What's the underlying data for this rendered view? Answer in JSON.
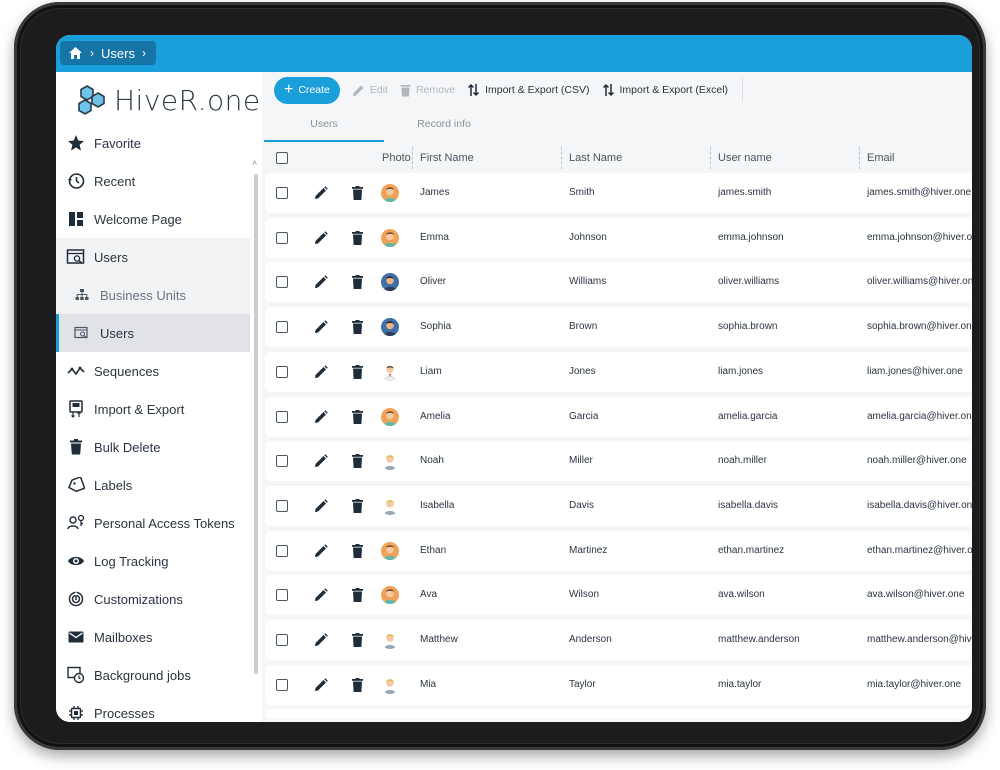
{
  "breadcrumb": {
    "items": [
      "Users"
    ]
  },
  "brand": {
    "logo_text": "HiveR.one",
    "accent": "#1a9fdb"
  },
  "sidebar": {
    "items": [
      {
        "label": "Favorite",
        "icon": "star-icon"
      },
      {
        "label": "Recent",
        "icon": "history-icon"
      },
      {
        "label": "Welcome Page",
        "icon": "dashboard-icon"
      },
      {
        "label": "Users",
        "icon": "user-card-icon",
        "group": true
      },
      {
        "label": "Business Units",
        "icon": "org-chart-icon",
        "sub": true
      },
      {
        "label": "Users",
        "icon": "user-card-icon",
        "sub": true,
        "active": true
      },
      {
        "label": "Sequences",
        "icon": "sequence-icon"
      },
      {
        "label": "Import & Export",
        "icon": "import-export-icon"
      },
      {
        "label": "Bulk Delete",
        "icon": "trash-icon"
      },
      {
        "label": "Labels",
        "icon": "tag-icon"
      },
      {
        "label": "Personal Access Tokens",
        "icon": "token-icon"
      },
      {
        "label": "Log Tracking",
        "icon": "eye-icon"
      },
      {
        "label": "Customizations",
        "icon": "fingerprint-icon"
      },
      {
        "label": "Mailboxes",
        "icon": "mail-icon"
      },
      {
        "label": "Background jobs",
        "icon": "clock-window-icon"
      },
      {
        "label": "Processes",
        "icon": "chip-icon"
      }
    ]
  },
  "toolbar": {
    "create": "Create",
    "edit": "Edit",
    "remove": "Remove",
    "import_csv": "Import & Export (CSV)",
    "import_excel": "Import & Export (Excel)"
  },
  "tabs": [
    "Users",
    "Record info"
  ],
  "table": {
    "columns": [
      "Photo",
      "First Name",
      "Last Name",
      "User name",
      "Email"
    ],
    "rows": [
      {
        "first": "James",
        "last": "Smith",
        "username": "james.smith",
        "email": "james.smith@hiver.one",
        "avatar": "orange"
      },
      {
        "first": "Emma",
        "last": "Johnson",
        "username": "emma.johnson",
        "email": "emma.johnson@hiver.one",
        "avatar": "orange"
      },
      {
        "first": "Oliver",
        "last": "Williams",
        "username": "oliver.williams",
        "email": "oliver.williams@hiver.one",
        "avatar": "blue"
      },
      {
        "first": "Sophia",
        "last": "Brown",
        "username": "sophia.brown",
        "email": "sophia.brown@hiver.one",
        "avatar": "blue"
      },
      {
        "first": "Liam",
        "last": "Jones",
        "username": "liam.jones",
        "email": "liam.jones@hiver.one",
        "avatar": "doctor"
      },
      {
        "first": "Amelia",
        "last": "Garcia",
        "username": "amelia.garcia",
        "email": "amelia.garcia@hiver.one",
        "avatar": "orange"
      },
      {
        "first": "Noah",
        "last": "Miller",
        "username": "noah.miller",
        "email": "noah.miller@hiver.one",
        "avatar": "blonde"
      },
      {
        "first": "Isabella",
        "last": "Davis",
        "username": "isabella.davis",
        "email": "isabella.davis@hiver.one",
        "avatar": "blonde"
      },
      {
        "first": "Ethan",
        "last": "Martinez",
        "username": "ethan.martinez",
        "email": "ethan.martinez@hiver.one",
        "avatar": "orange"
      },
      {
        "first": "Ava",
        "last": "Wilson",
        "username": "ava.wilson",
        "email": "ava.wilson@hiver.one",
        "avatar": "orange"
      },
      {
        "first": "Matthew",
        "last": "Anderson",
        "username": "matthew.anderson",
        "email": "matthew.anderson@hiver.one",
        "avatar": "blonde"
      },
      {
        "first": "Mia",
        "last": "Taylor",
        "username": "mia.taylor",
        "email": "mia.taylor@hiver.one",
        "avatar": "blonde"
      }
    ]
  }
}
